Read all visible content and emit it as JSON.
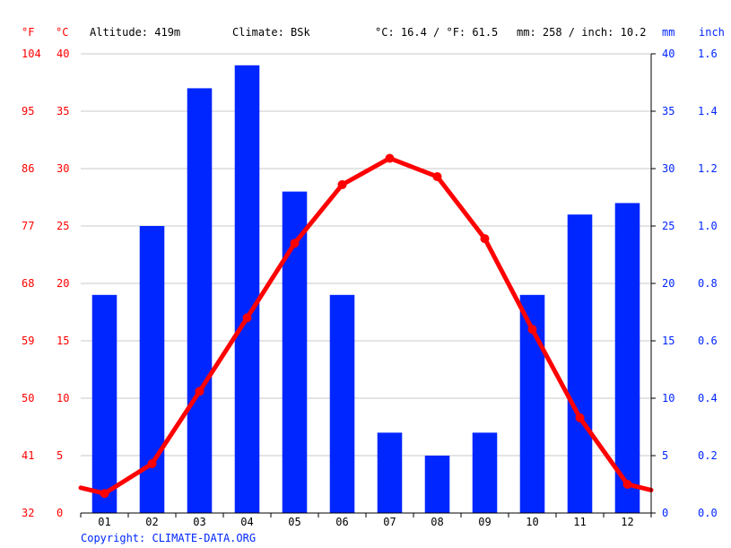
{
  "header": {
    "altitude": "Altitude: 419m",
    "climate": "Climate: BSk",
    "temperature": "°C: 16.4 / °F: 61.5",
    "precipitation": "mm: 258 / inch: 10.2"
  },
  "units": {
    "fahrenheit": "°F",
    "celsius": "°C",
    "mm": "mm",
    "inch": "inch"
  },
  "copyright": "Copyright: CLIMATE-DATA.ORG",
  "colors": {
    "temperature": "#ff0000",
    "precipitation": "#0026ff",
    "grid": "#c8c8c8",
    "axis": "#000000"
  },
  "chart_data": {
    "type": "bar+line",
    "categories": [
      "01",
      "02",
      "03",
      "04",
      "05",
      "06",
      "07",
      "08",
      "09",
      "10",
      "11",
      "12"
    ],
    "series": [
      {
        "name": "Precipitation (mm)",
        "type": "bar",
        "axis": "right",
        "values": [
          19,
          25,
          37,
          39,
          28,
          19,
          7,
          5,
          7,
          19,
          26,
          27
        ]
      },
      {
        "name": "Temperature (°C)",
        "type": "line",
        "axis": "left",
        "values": [
          1.7,
          4.3,
          10.6,
          17.0,
          23.5,
          28.6,
          30.9,
          29.3,
          23.9,
          16.0,
          8.3,
          2.5
        ]
      }
    ],
    "line_edge_values": {
      "start": 2.2,
      "end": 2.0
    },
    "ylim": [
      0,
      40
    ],
    "left_ticks_c": [
      "0",
      "5",
      "10",
      "15",
      "20",
      "25",
      "30",
      "35",
      "40"
    ],
    "left_ticks_f": [
      "32",
      "41",
      "50",
      "59",
      "68",
      "77",
      "86",
      "95",
      "104"
    ],
    "right_ticks_mm": [
      "0",
      "5",
      "10",
      "15",
      "20",
      "25",
      "30",
      "35",
      "40"
    ],
    "right_ticks_inch": [
      "0.0",
      "0.2",
      "0.4",
      "0.6",
      "0.8",
      "1.0",
      "1.2",
      "1.4",
      "1.6"
    ]
  }
}
